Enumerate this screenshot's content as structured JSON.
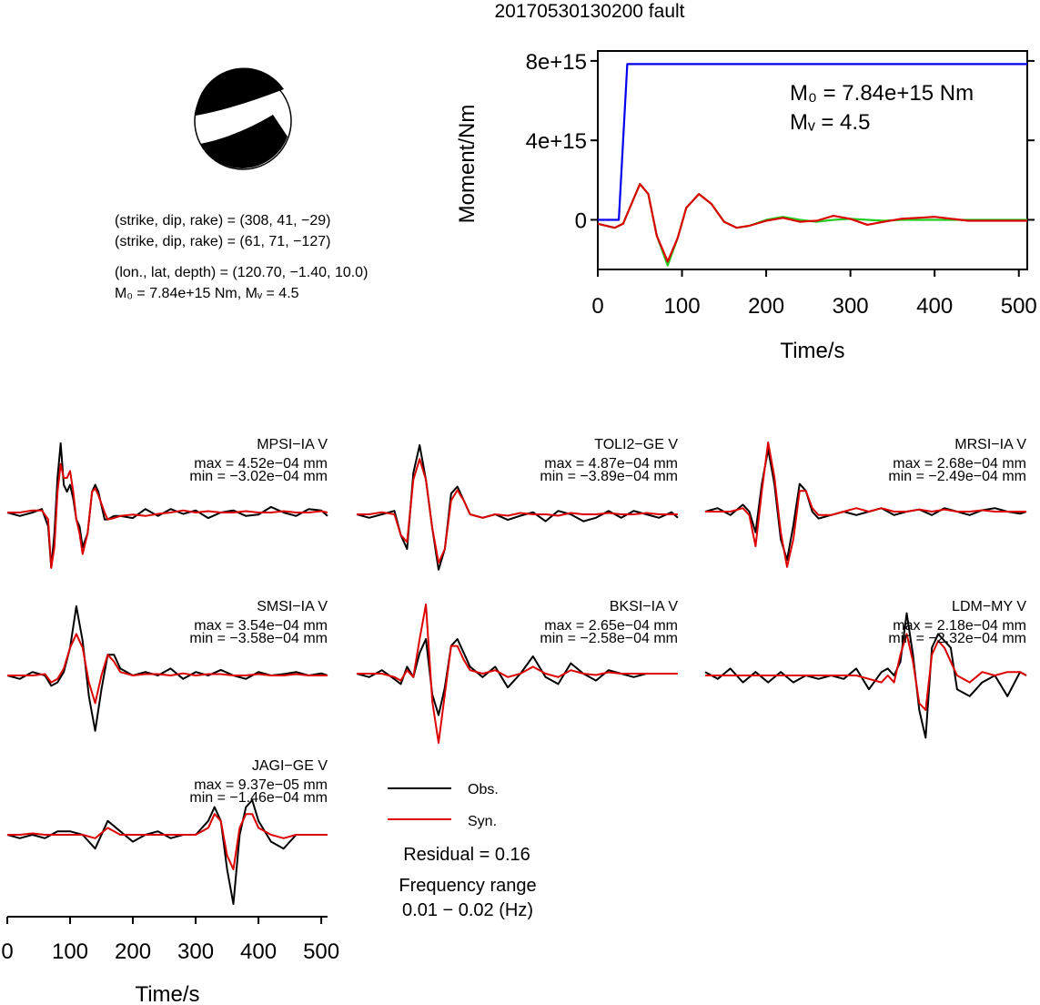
{
  "title": "20170530130200 fault",
  "source_info": {
    "line1": "(strike, dip, rake) = (308, 41, −29)",
    "line2": "(strike, dip, rake) = (61, 71, −127)",
    "line3": "(lon., lat, depth) = (120.70, −1.40, 10.0)",
    "line4": "M₀ = 7.84e+15 Nm, Mᵥ = 4.5"
  },
  "colors": {
    "obs": "#000000",
    "syn": "#dd0000",
    "moment": "#0000ee",
    "stf_green": "#22cc22",
    "stf_red": "#dd0000"
  },
  "legend": {
    "obs": "Obs.",
    "syn": "Syn.",
    "residual": "Residual = 0.16",
    "freq_title": "Frequency range",
    "freq_range": "0.01 − 0.02 (Hz)"
  },
  "chart_data": [
    {
      "type": "line",
      "xlabel": "Time/s",
      "ylabel": "Moment/Nm",
      "xlim": [
        0,
        510
      ],
      "ylim": [
        -2500000000000000.0,
        8500000000000000.0
      ],
      "xticks": [
        0,
        100,
        200,
        300,
        400,
        500
      ],
      "yticks": [
        {
          "value": 0,
          "label": "0"
        },
        {
          "value": 4000000000000000.0,
          "label": "4e+15"
        },
        {
          "value": 8000000000000000.0,
          "label": "8e+15"
        }
      ],
      "annotation_m0": "M₀ = 7.84e+15 Nm",
      "annotation_mw": "Mᵥ = 4.5",
      "series": [
        {
          "x": [
            0,
            25,
            35,
            510
          ],
          "values": [
            0,
            0,
            7840000000000000.0,
            7840000000000000.0
          ]
        },
        {
          "x": [
            0,
            20,
            30,
            40,
            50,
            60,
            70,
            83,
            95,
            105,
            120,
            135,
            150,
            165,
            180,
            200,
            220,
            240,
            260,
            280,
            300,
            320,
            340,
            360,
            400,
            440,
            480,
            510
          ],
          "values": [
            -200000000000000.0,
            -400000000000000.0,
            -200000000000000.0,
            800000000000000.0,
            1800000000000000.0,
            1300000000000000.0,
            -800000000000000.0,
            -2300000000000000.0,
            -900000000000000.0,
            600000000000000.0,
            1300000000000000.0,
            800000000000000.0,
            -100000000000000.0,
            -400000000000000.0,
            -300000000000000.0,
            0.0,
            150000000000000.0,
            0.0,
            -100000000000000.0,
            0.0,
            50000000000000.0,
            0.0,
            -50000000000000.0,
            0.0,
            0.0,
            0.0,
            0.0,
            0.0
          ]
        },
        {
          "x": [
            0,
            20,
            30,
            40,
            50,
            60,
            70,
            83,
            95,
            105,
            120,
            135,
            150,
            165,
            180,
            200,
            220,
            240,
            260,
            280,
            300,
            320,
            340,
            360,
            400,
            440,
            480,
            510
          ],
          "values": [
            -200000000000000.0,
            -400000000000000.0,
            -200000000000000.0,
            800000000000000.0,
            1800000000000000.0,
            1300000000000000.0,
            -800000000000000.0,
            -2100000000000000.0,
            -900000000000000.0,
            600000000000000.0,
            1300000000000000.0,
            800000000000000.0,
            -100000000000000.0,
            -400000000000000.0,
            -300000000000000.0,
            -50000000000000.0,
            100000000000000.0,
            -100000000000000.0,
            -50000000000000.0,
            200000000000000.0,
            50000000000000.0,
            -250000000000000.0,
            -100000000000000.0,
            50000000000000.0,
            150000000000000.0,
            -50000000000000.0,
            -50000000000000.0,
            -50000000000000.0
          ]
        }
      ]
    },
    {
      "type": "line",
      "xlabel": "Time/s",
      "xlim": [
        0,
        510
      ],
      "xticks": [
        0,
        100,
        200,
        300,
        400,
        500
      ],
      "ylim": [
        -1,
        1
      ],
      "panels": [
        {
          "station": "MPSI−IA V",
          "max": "max = 4.52e−04 mm",
          "min": "min = −3.02e−04 mm",
          "x": [
            0,
            20,
            40,
            55,
            65,
            70,
            75,
            80,
            85,
            90,
            95,
            100,
            105,
            110,
            115,
            120,
            128,
            135,
            140,
            145,
            155,
            160,
            170,
            180,
            200,
            220,
            240,
            260,
            280,
            300,
            320,
            340,
            360,
            380,
            400,
            420,
            440,
            460,
            480,
            500,
            510
          ],
          "obs": [
            0.0,
            -0.05,
            0.0,
            0.05,
            -0.2,
            -0.8,
            -0.3,
            0.5,
            1.0,
            0.4,
            0.3,
            0.4,
            0.2,
            -0.1,
            -0.2,
            -0.5,
            -0.3,
            0.3,
            0.4,
            0.3,
            -0.1,
            -0.1,
            -0.05,
            -0.05,
            -0.08,
            0.05,
            -0.05,
            0.05,
            -0.02,
            0.03,
            -0.08,
            0.0,
            0.03,
            -0.05,
            -0.03,
            0.08,
            0.0,
            -0.05,
            0.05,
            0.03,
            -0.05
          ],
          "syn": [
            0.0,
            0.0,
            0.03,
            0.03,
            -0.1,
            -0.8,
            -0.5,
            0.3,
            0.7,
            0.5,
            0.5,
            0.6,
            0.3,
            -0.1,
            -0.3,
            -0.6,
            -0.3,
            0.3,
            0.35,
            0.25,
            0.0,
            -0.1,
            -0.08,
            -0.05,
            -0.03,
            -0.05,
            -0.02,
            0.0,
            0.03,
            0.0,
            0.02,
            0.0,
            0.0,
            0.02,
            0.0,
            0.0,
            0.02,
            0.0,
            0.0,
            0.02,
            0.0
          ]
        },
        {
          "station": "TOLI2−GE V",
          "max": "max = 4.87e−04 mm",
          "min": "min = −3.89e−04 mm",
          "x": [
            0,
            20,
            40,
            60,
            70,
            80,
            90,
            100,
            110,
            120,
            130,
            140,
            150,
            160,
            170,
            180,
            200,
            220,
            240,
            260,
            280,
            300,
            320,
            340,
            360,
            380,
            400,
            420,
            440,
            460,
            480,
            500,
            510
          ],
          "obs": [
            0.0,
            -0.05,
            0.0,
            0.05,
            -0.3,
            -0.5,
            0.6,
            1.0,
            0.5,
            -0.2,
            -0.8,
            -0.5,
            0.3,
            0.4,
            0.2,
            0.0,
            -0.05,
            0.0,
            -0.08,
            -0.02,
            0.03,
            -0.1,
            0.05,
            0.0,
            -0.1,
            -0.05,
            0.05,
            -0.05,
            0.05,
            0.0,
            -0.05,
            0.03,
            -0.05
          ],
          "syn": [
            0.0,
            0.0,
            0.03,
            0.0,
            -0.3,
            -0.4,
            0.5,
            0.8,
            0.5,
            -0.2,
            -0.7,
            -0.5,
            0.2,
            0.35,
            0.2,
            0.0,
            -0.05,
            0.0,
            -0.02,
            0.02,
            0.0,
            0.0,
            -0.02,
            0.02,
            0.0,
            0.0,
            0.02,
            0.0,
            0.0,
            0.02,
            0.0,
            0.0,
            0.0
          ]
        },
        {
          "station": "MRSI−IA V",
          "max": "max = 2.68e−04 mm",
          "min": "min = −2.49e−04 mm",
          "x": [
            0,
            20,
            40,
            60,
            70,
            80,
            90,
            100,
            110,
            120,
            130,
            140,
            150,
            160,
            170,
            180,
            200,
            220,
            240,
            260,
            280,
            300,
            320,
            340,
            360,
            380,
            400,
            420,
            440,
            460,
            480,
            500,
            510
          ],
          "obs": [
            0.0,
            0.05,
            -0.05,
            0.1,
            0.0,
            -0.3,
            0.4,
            0.9,
            0.4,
            -0.4,
            -0.7,
            -0.2,
            0.4,
            0.3,
            0.0,
            -0.1,
            -0.05,
            0.0,
            -0.05,
            0.0,
            0.05,
            -0.05,
            0.0,
            0.03,
            -0.05,
            0.05,
            0.0,
            -0.05,
            0.02,
            0.05,
            0.0,
            -0.03,
            0.0
          ],
          "syn": [
            0.0,
            0.0,
            0.0,
            0.05,
            -0.05,
            -0.5,
            0.3,
            1.0,
            0.5,
            -0.3,
            -0.8,
            -0.4,
            0.3,
            0.3,
            0.05,
            -0.05,
            -0.05,
            0.0,
            0.05,
            0.0,
            0.05,
            0.0,
            0.0,
            0.03,
            0.0,
            0.03,
            0.0,
            0.0,
            0.02,
            0.0,
            0.0,
            0.0,
            0.0
          ]
        },
        {
          "station": "SMSI−IA V",
          "max": "max = 3.54e−04 mm",
          "min": "min = −3.58e−04 mm",
          "x": [
            0,
            20,
            40,
            60,
            70,
            80,
            90,
            100,
            110,
            120,
            130,
            140,
            150,
            160,
            170,
            180,
            200,
            220,
            240,
            260,
            280,
            300,
            320,
            340,
            360,
            380,
            400,
            420,
            440,
            460,
            480,
            500,
            510
          ],
          "obs": [
            0.0,
            -0.05,
            0.05,
            0.0,
            -0.15,
            -0.1,
            0.05,
            0.4,
            1.0,
            0.5,
            -0.3,
            -0.8,
            -0.2,
            0.3,
            0.3,
            0.1,
            0.0,
            0.05,
            0.0,
            0.1,
            -0.05,
            0.05,
            0.0,
            0.08,
            0.0,
            -0.05,
            0.05,
            0.0,
            0.02,
            0.05,
            0.0,
            0.03,
            0.0
          ],
          "syn": [
            0.0,
            0.0,
            0.0,
            0.02,
            -0.1,
            -0.05,
            0.1,
            0.4,
            0.6,
            0.4,
            -0.1,
            -0.4,
            0.0,
            0.3,
            0.2,
            0.05,
            0.0,
            0.02,
            0.02,
            0.0,
            0.03,
            0.0,
            0.02,
            0.02,
            0.0,
            0.0,
            0.02,
            0.0,
            0.0,
            0.02,
            0.0,
            0.0,
            0.0
          ]
        },
        {
          "station": "BKSI−IA V",
          "max": "max = 2.65e−04 mm",
          "min": "min = −2.58e−04 mm",
          "x": [
            0,
            20,
            40,
            60,
            70,
            80,
            90,
            100,
            110,
            120,
            130,
            140,
            150,
            160,
            170,
            180,
            200,
            220,
            240,
            260,
            280,
            300,
            320,
            340,
            360,
            380,
            400,
            420,
            440,
            460,
            480,
            500,
            510
          ],
          "obs": [
            0.0,
            -0.05,
            0.05,
            -0.08,
            -0.15,
            0.1,
            -0.05,
            0.3,
            0.5,
            -0.3,
            -0.6,
            -0.2,
            0.4,
            0.5,
            0.3,
            0.1,
            -0.05,
            0.1,
            -0.2,
            0.0,
            0.25,
            -0.05,
            -0.15,
            0.15,
            0.0,
            -0.1,
            0.05,
            0.0,
            -0.05,
            0.0,
            0.0,
            0.0,
            0.0
          ],
          "syn": [
            0.0,
            0.0,
            0.0,
            -0.05,
            -0.1,
            0.05,
            -0.05,
            0.5,
            1.0,
            -0.4,
            -1.0,
            -0.3,
            0.4,
            0.4,
            0.2,
            0.05,
            0.0,
            0.05,
            -0.05,
            0.0,
            0.1,
            0.0,
            -0.05,
            0.05,
            0.0,
            -0.02,
            0.02,
            0.0,
            0.0,
            0.0,
            0.0,
            0.0,
            0.0
          ]
        },
        {
          "station": "LDM−MY V",
          "max": "max = 2.18e−04 mm",
          "min": "min = −2.32e−04 mm",
          "x": [
            0,
            20,
            40,
            60,
            80,
            100,
            120,
            140,
            160,
            180,
            200,
            220,
            240,
            260,
            280,
            290,
            300,
            310,
            320,
            330,
            340,
            350,
            360,
            370,
            380,
            390,
            400,
            420,
            440,
            460,
            480,
            500,
            510
          ],
          "obs": [
            0.05,
            -0.05,
            0.1,
            -0.1,
            0.05,
            -0.1,
            0.05,
            -0.1,
            0.0,
            -0.05,
            0.0,
            -0.05,
            0.1,
            -0.2,
            0.05,
            0.1,
            0.0,
            0.2,
            0.9,
            0.3,
            -0.5,
            -0.9,
            0.4,
            0.6,
            0.5,
            0.4,
            -0.2,
            -0.3,
            -0.1,
            0.0,
            -0.3,
            0.05,
            0.0
          ],
          "syn": [
            0.0,
            0.0,
            0.0,
            0.0,
            0.0,
            0.0,
            0.0,
            0.0,
            0.0,
            0.0,
            0.0,
            0.0,
            0.0,
            -0.05,
            -0.1,
            0.0,
            -0.1,
            0.3,
            0.6,
            0.2,
            -0.4,
            -0.5,
            0.3,
            0.5,
            0.4,
            0.2,
            0.0,
            -0.1,
            0.05,
            0.0,
            0.05,
            0.05,
            0.0
          ]
        },
        {
          "station": "JAGI−GE V",
          "max": "max = 9.37e−05 mm",
          "min": "min = −1.46e−04 mm",
          "x": [
            0,
            20,
            40,
            60,
            80,
            100,
            120,
            140,
            160,
            180,
            200,
            220,
            240,
            260,
            280,
            300,
            320,
            330,
            340,
            350,
            360,
            370,
            380,
            390,
            400,
            420,
            440,
            460,
            480,
            500,
            510
          ],
          "obs": [
            0.0,
            -0.05,
            0.0,
            -0.05,
            0.05,
            0.05,
            0.0,
            -0.2,
            0.2,
            0.05,
            -0.1,
            0.0,
            0.05,
            -0.05,
            0.0,
            0.0,
            0.2,
            0.4,
            0.2,
            -0.5,
            -1.0,
            0.0,
            0.4,
            0.5,
            0.2,
            -0.1,
            -0.2,
            0.0,
            0.0,
            0.0,
            0.0
          ],
          "syn": [
            0.0,
            0.0,
            0.02,
            0.0,
            0.0,
            0.0,
            0.0,
            -0.05,
            0.1,
            0.0,
            0.0,
            0.0,
            0.0,
            0.0,
            0.0,
            0.0,
            0.1,
            0.3,
            0.2,
            -0.3,
            -0.5,
            0.1,
            0.3,
            0.3,
            0.1,
            0.0,
            -0.05,
            0.0,
            0.0,
            0.0,
            0.0
          ]
        }
      ]
    }
  ]
}
